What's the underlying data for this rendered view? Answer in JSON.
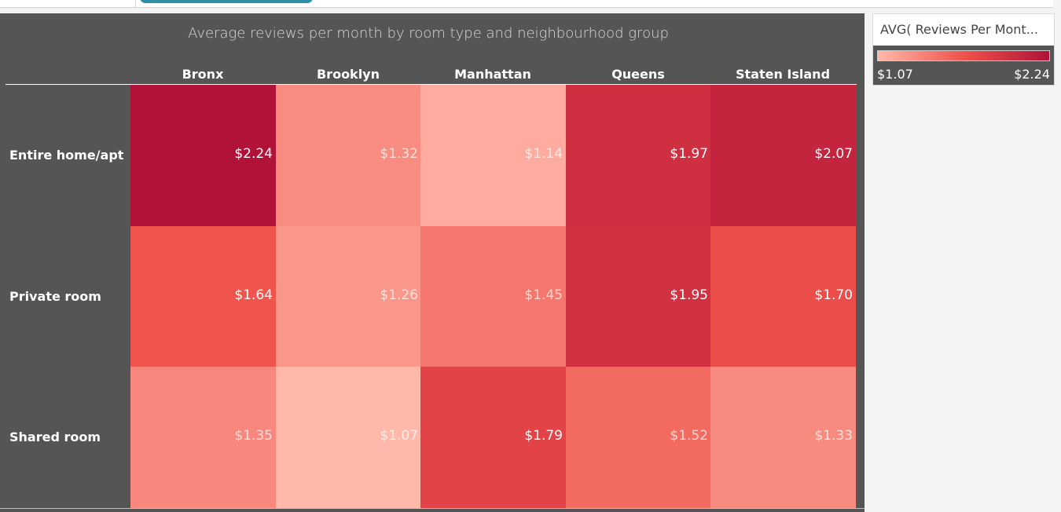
{
  "chart_data": {
    "type": "heatmap",
    "title": "Average reviews per month by room type and neighbourhood group",
    "columns": [
      "Bronx",
      "Brooklyn",
      "Manhattan",
      "Queens",
      "Staten Island"
    ],
    "rows": [
      "Entire home/apt",
      "Private room",
      "Shared room"
    ],
    "values": [
      [
        2.24,
        1.32,
        1.14,
        1.97,
        2.07
      ],
      [
        1.64,
        1.26,
        1.45,
        1.95,
        1.7
      ],
      [
        1.35,
        1.07,
        1.79,
        1.52,
        1.33
      ]
    ],
    "labels": [
      [
        "$2.24",
        "$1.32",
        "$1.14",
        "$1.97",
        "$2.07"
      ],
      [
        "$1.64",
        "$1.26",
        "$1.45",
        "$1.95",
        "$1.70"
      ],
      [
        "$1.35",
        "$1.07",
        "$1.79",
        "$1.52",
        "$1.33"
      ]
    ],
    "color_range": [
      1.07,
      2.24
    ],
    "color_low": "#ffb8aa",
    "color_mid": "#f0524b",
    "color_high": "#b01238",
    "legend": {
      "title": "AVG( Reviews Per Mont...",
      "min_label": "$1.07",
      "max_label": "$2.24",
      "placement": "right"
    }
  },
  "colors": {
    "background": "#555555",
    "panel": "#f4f4f4",
    "text": "#ffffff",
    "accent": "#2f8fa8"
  }
}
